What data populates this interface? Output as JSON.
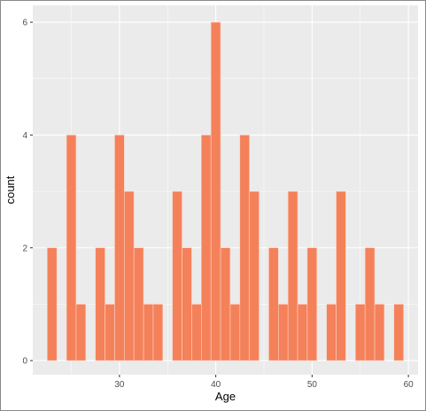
{
  "chart_data": {
    "type": "bar",
    "xlabel": "Age",
    "ylabel": "count",
    "xlim": [
      21,
      61
    ],
    "ylim": [
      -0.25,
      6.3
    ],
    "xticks": [
      30,
      40,
      50,
      60
    ],
    "yticks": [
      0,
      2,
      4,
      6
    ],
    "grid": true,
    "bar_color": "#F4815A",
    "panel_background": "#EBEBEB",
    "grid_color": "#FFFFFF",
    "x": [
      23,
      25,
      26,
      28,
      29,
      30,
      31,
      32,
      33,
      34,
      36,
      37,
      38,
      39,
      40,
      41,
      42,
      43,
      44,
      46,
      47,
      48,
      49,
      50,
      52,
      53,
      55,
      56,
      57,
      59
    ],
    "values": [
      2,
      4,
      1,
      2,
      1,
      4,
      3,
      2,
      1,
      1,
      3,
      2,
      1,
      4,
      6,
      2,
      1,
      4,
      3,
      2,
      1,
      3,
      1,
      2,
      1,
      3,
      1,
      2,
      1,
      1
    ]
  }
}
